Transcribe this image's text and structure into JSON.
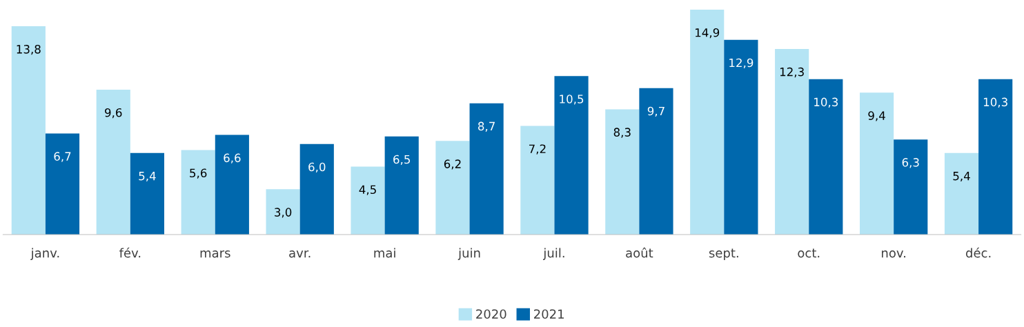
{
  "chart_data": {
    "type": "bar",
    "categories": [
      "janv.",
      "fév.",
      "mars",
      "avr.",
      "mai",
      "juin",
      "juil.",
      "août",
      "sept.",
      "oct.",
      "nov.",
      "déc."
    ],
    "series": [
      {
        "name": "2020",
        "color": "#b4e4f4",
        "values": [
          13.8,
          9.6,
          5.6,
          3.0,
          4.5,
          6.2,
          7.2,
          8.3,
          14.9,
          12.3,
          9.4,
          5.4
        ],
        "value_labels": [
          "13,8",
          "9,6",
          "5,6",
          "3,0",
          "4,5",
          "6,2",
          "7,2",
          "8,3",
          "14,9",
          "12,3",
          "9,4",
          "5,4"
        ]
      },
      {
        "name": "2021",
        "color": "#0068ad",
        "values": [
          6.7,
          5.4,
          6.6,
          6.0,
          6.5,
          8.7,
          10.5,
          9.7,
          12.9,
          10.3,
          6.3,
          10.3
        ],
        "value_labels": [
          "6,7",
          "5,4",
          "6,6",
          "6,0",
          "6,5",
          "8,7",
          "10,5",
          "9,7",
          "12,9",
          "10,3",
          "6,3",
          "10,3"
        ]
      }
    ],
    "legend": "bottom",
    "grid": false
  }
}
